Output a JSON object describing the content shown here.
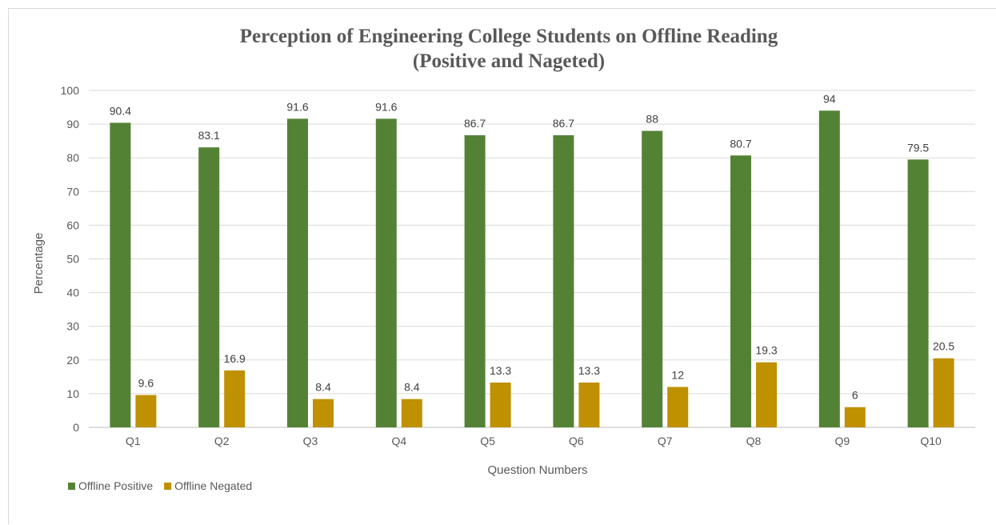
{
  "chart_data": {
    "type": "bar",
    "title": "Perception of Engineering College Students on Offline Reading",
    "subtitle": "(Positive and Nageted)",
    "xlabel": "Question Numbers",
    "ylabel": "Percentage",
    "ylim": [
      0,
      100
    ],
    "yticks": [
      0,
      10,
      20,
      30,
      40,
      50,
      60,
      70,
      80,
      90,
      100
    ],
    "grid": true,
    "legend_position": "bottom-left",
    "categories": [
      "Q1",
      "Q2",
      "Q3",
      "Q4",
      "Q5",
      "Q6",
      "Q7",
      "Q8",
      "Q9",
      "Q10"
    ],
    "series": [
      {
        "name": "Offline Positive",
        "color": "#548235",
        "values": [
          90.4,
          83.1,
          91.6,
          91.6,
          86.7,
          86.7,
          88,
          80.7,
          94,
          79.5
        ]
      },
      {
        "name": "Offline Negated",
        "color": "#BF9000",
        "values": [
          9.6,
          16.9,
          8.4,
          8.4,
          13.3,
          13.3,
          12,
          19.3,
          6,
          20.5
        ]
      }
    ]
  }
}
